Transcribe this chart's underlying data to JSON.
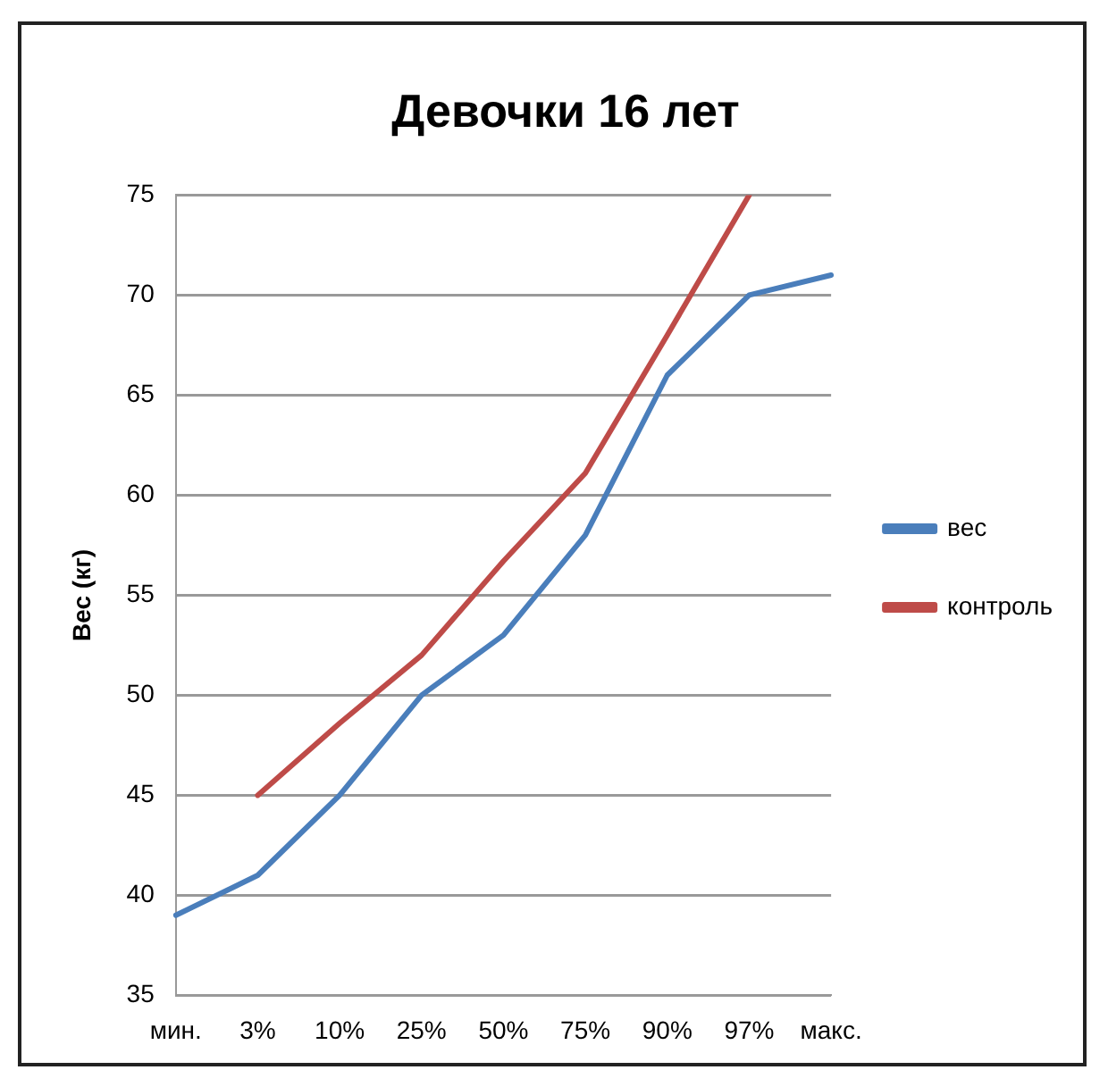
{
  "chart_data": {
    "type": "line",
    "title": "Девочки 16 лет",
    "ylabel": "Вес (кг)",
    "categories": [
      "мин.",
      "3%",
      "10%",
      "25%",
      "50%",
      "75%",
      "90%",
      "97%",
      "макс."
    ],
    "series": [
      {
        "name": "вес",
        "color": "#4a7ebb",
        "values": [
          39,
          41,
          45,
          50,
          53,
          58,
          66,
          70,
          71
        ]
      },
      {
        "name": "контроль",
        "color": "#be4b48",
        "values": [
          null,
          45,
          48.6,
          52,
          56.7,
          61.1,
          68,
          75,
          null
        ]
      }
    ],
    "ylim": [
      35,
      75
    ],
    "yticks": [
      35,
      40,
      45,
      50,
      55,
      60,
      65,
      70,
      75
    ],
    "grid": "y",
    "legend": "right",
    "marker": "none"
  }
}
